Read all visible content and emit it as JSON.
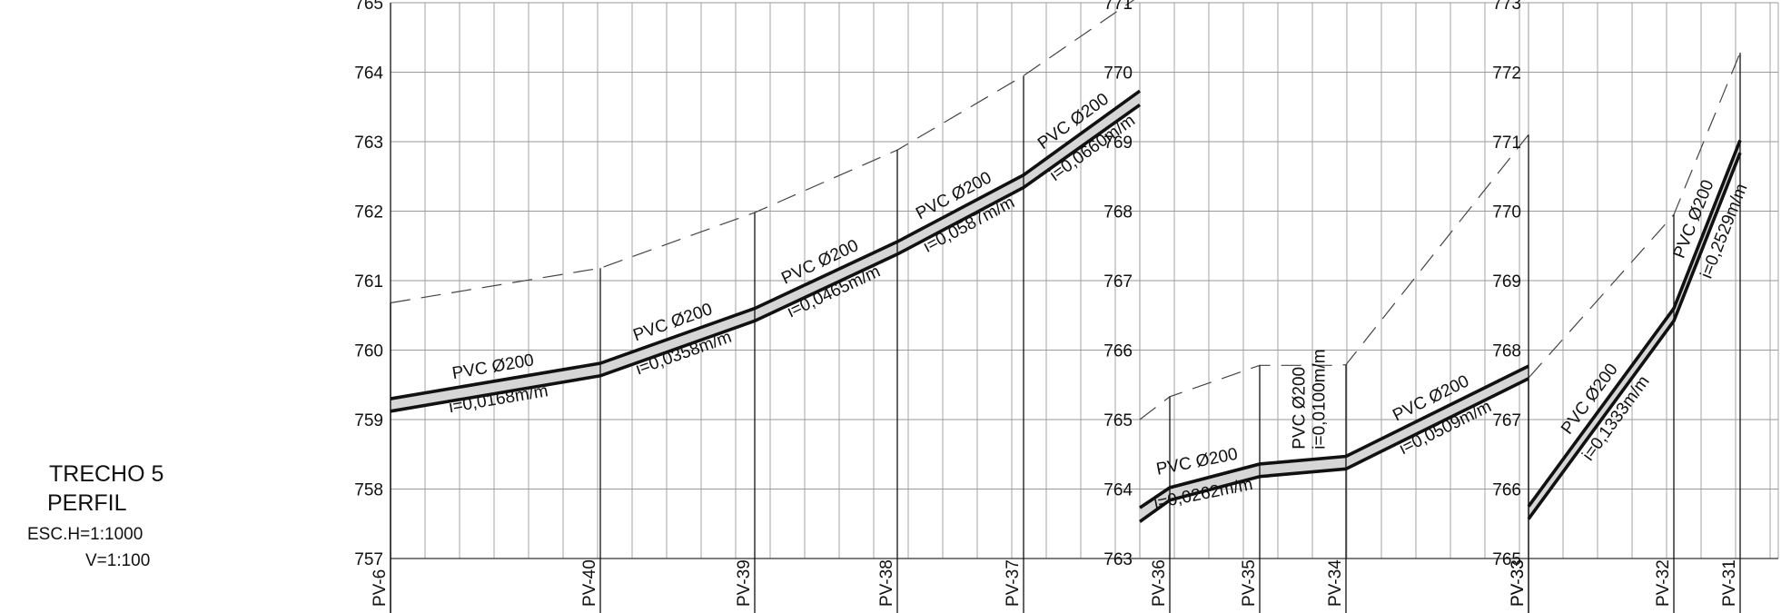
{
  "title_block": {
    "line1": "TRECHO 5",
    "line2": "PERFIL",
    "scale_h": "ESC.H=1:1000",
    "scale_v": "V=1:100"
  },
  "panels": [
    {
      "id": "panel-1",
      "elev_min": 757,
      "elev_max": 765,
      "y_ticks": [
        "757",
        "758",
        "759",
        "760",
        "761",
        "762",
        "763",
        "764",
        "765"
      ],
      "stations": [
        {
          "label": "PV-6",
          "ground": 760.68,
          "pipe_top": 759.3,
          "pipe_bottom": 759.12
        },
        {
          "label": "PV-40",
          "ground": 761.18,
          "pipe_top": 759.81,
          "pipe_bottom": 759.63
        },
        {
          "label": "PV-39",
          "ground": 761.98,
          "pipe_top": 760.6,
          "pipe_bottom": 760.42
        },
        {
          "label": "PV-38",
          "ground": 762.88,
          "pipe_top": 761.56,
          "pipe_bottom": 761.38
        },
        {
          "label": "PV-37",
          "ground": 763.95,
          "pipe_top": 762.52,
          "pipe_bottom": 762.34
        }
      ],
      "end": {
        "ground": 765.1,
        "pipe_top": 763.73,
        "pipe_bottom": 763.53
      },
      "segments": [
        {
          "material": "PVC Ø200",
          "slope": "i=0,0168m/m"
        },
        {
          "material": "PVC Ø200",
          "slope": "i=0,0358m/m"
        },
        {
          "material": "PVC Ø200",
          "slope": "i=0,0465m/m"
        },
        {
          "material": "PVC Ø200",
          "slope": "i=0,0587m/m"
        },
        {
          "material": "PVC Ø200",
          "slope": "i=0,0660m/m"
        }
      ]
    },
    {
      "id": "panel-2",
      "elev_min": 763,
      "elev_max": 771,
      "y_ticks": [
        "763",
        "764",
        "765",
        "766",
        "767",
        "768",
        "769",
        "770",
        "771"
      ],
      "start": {
        "ground": 765.0,
        "pipe_top": 763.73,
        "pipe_bottom": 763.53
      },
      "stations": [
        {
          "label": "PV-36",
          "ground": 765.33,
          "pipe_top": 764.02,
          "pipe_bottom": 763.84
        },
        {
          "label": "PV-35",
          "ground": 765.78,
          "pipe_top": 764.36,
          "pipe_bottom": 764.18
        },
        {
          "label": "PV-34",
          "ground": 765.79,
          "pipe_top": 764.47,
          "pipe_bottom": 764.29
        },
        {
          "label": "PV-33",
          "ground": 769.1,
          "pipe_top": 765.77,
          "pipe_bottom": 765.59
        }
      ],
      "extra_ground": [
        {
          "after": 2,
          "ground": 765.78
        }
      ],
      "segments": [
        {
          "material": "PVC Ø200",
          "slope": "i=0,0262m/m"
        },
        {
          "material": "PVC Ø200",
          "slope": "i=0,0100m/m"
        },
        {
          "material": "PVC Ø200",
          "slope": "i=0,0509m/m"
        }
      ]
    },
    {
      "id": "panel-3",
      "elev_min": 765,
      "elev_max": 773,
      "y_ticks": [
        "765",
        "766",
        "767",
        "768",
        "769",
        "770",
        "771",
        "772",
        "773"
      ],
      "stations": [
        {
          "label": "PV-33",
          "ground": 767.6,
          "pipe_top": 765.75,
          "pipe_bottom": 765.57
        },
        {
          "label": "PV-32",
          "ground": 769.95,
          "pipe_top": 768.6,
          "pipe_bottom": 768.42
        },
        {
          "label": "PV-31",
          "ground": 772.28,
          "pipe_top": 771.02,
          "pipe_bottom": 770.84
        }
      ],
      "segments": [
        {
          "material": "PVC Ø200",
          "slope": "i=0,1333m/m"
        },
        {
          "material": "PVC Ø200",
          "slope": "i=0,2529m/m"
        }
      ]
    }
  ]
}
